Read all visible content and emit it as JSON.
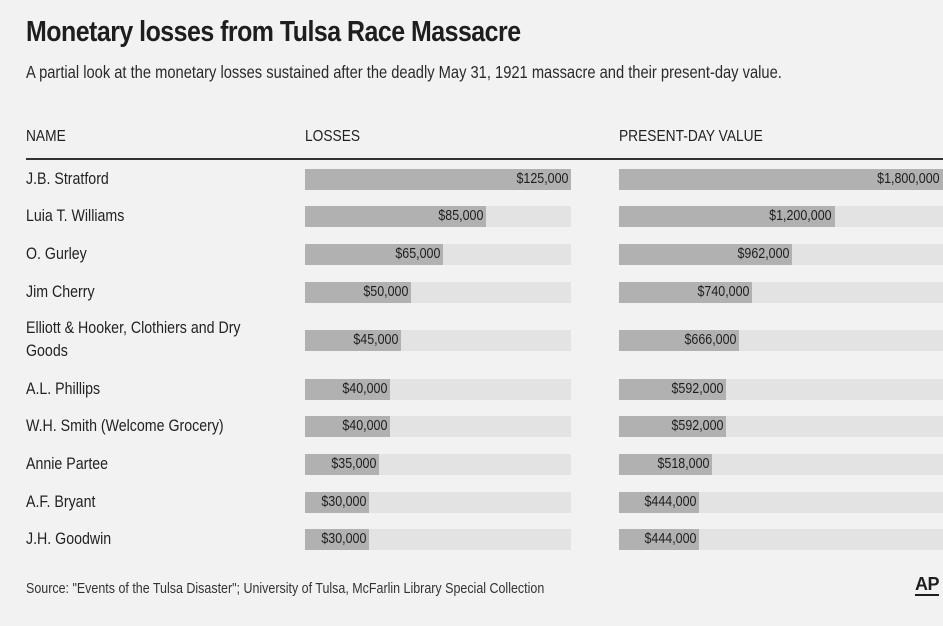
{
  "chart_data": {
    "type": "bar",
    "title": "Monetary losses from Tulsa Race Massacre",
    "subtitle": "A partial look at the monetary losses sustained after the deadly May 31, 1921 massacre and their present-day value.",
    "column_headers": {
      "name": "NAME",
      "losses": "LOSSES",
      "present": "PRESENT-DAY VALUE"
    },
    "categories": [
      "J.B. Stratford",
      "Luia T. Williams",
      "O. Gurley",
      "Jim Cherry",
      "Elliott & Hooker, Clothiers and Dry Goods",
      "A.L. Phillips",
      "W.H. Smith (Welcome Grocery)",
      "Annie Partee",
      "A.F. Bryant",
      "J.H. Goodwin"
    ],
    "series": [
      {
        "name": "LOSSES",
        "values": [
          125000,
          85000,
          65000,
          50000,
          45000,
          40000,
          40000,
          35000,
          30000,
          30000
        ],
        "labels": [
          "$125,000",
          "$85,000",
          "$65,000",
          "$50,000",
          "$45,000",
          "$40,000",
          "$40,000",
          "$35,000",
          "$30,000",
          "$30,000"
        ],
        "max": 125000
      },
      {
        "name": "PRESENT-DAY VALUE",
        "values": [
          1800000,
          1200000,
          962000,
          740000,
          666000,
          592000,
          592000,
          518000,
          444000,
          444000
        ],
        "labels": [
          "$1,800,000",
          "$1,200,000",
          "$962,000",
          "$740,000",
          "$666,000",
          "$592,000",
          "$592,000",
          "$518,000",
          "$444,000",
          "$444,000"
        ],
        "max": 1800000
      }
    ],
    "source": "Source: \"Events of the Tulsa Disaster\"; University of Tulsa, McFarlin Library Special Collection",
    "credit": "AP",
    "colors": {
      "bar": "#b1b1b1",
      "track": "#e3e3e3",
      "background": "#f2f2f2",
      "text": "#1e1e1e"
    }
  }
}
